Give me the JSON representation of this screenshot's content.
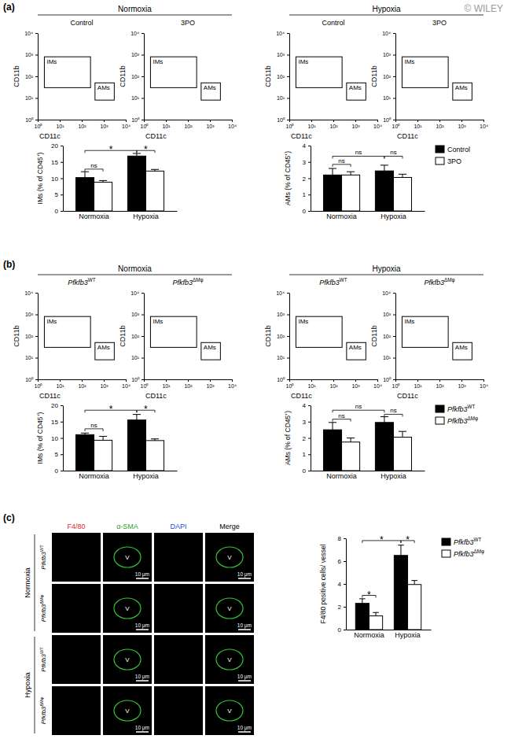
{
  "watermark": "© WILEY",
  "panel_labels": [
    "(a)",
    "(b)",
    "(c)"
  ],
  "flow_plots": [
    {
      "groups": [
        {
          "label": "Normoxia",
          "conditions": [
            {
              "text": "Control"
            },
            {
              "text": "3PO"
            }
          ]
        },
        {
          "label": "Hypoxia",
          "conditions": [
            {
              "text": "Control"
            },
            {
              "text": "3PO"
            }
          ]
        }
      ],
      "xlabel": "CD11c",
      "ylabel": "CD11b",
      "log": true,
      "xlim": [
        1,
        10000
      ],
      "ylim": [
        1,
        10000
      ],
      "xticks": [
        {
          "value": 1,
          "label": "10⁰"
        },
        {
          "value": 10,
          "label": "10¹"
        },
        {
          "value": 100,
          "label": "10²"
        },
        {
          "value": 1000,
          "label": "10³"
        },
        {
          "value": 10000,
          "label": "10⁴"
        }
      ],
      "yticks": [
        {
          "value": 1,
          "label": "10⁰"
        },
        {
          "value": 10,
          "label": "10¹"
        },
        {
          "value": 100,
          "label": "10²"
        },
        {
          "value": 1000,
          "label": "10³"
        },
        {
          "value": 10000,
          "label": "10⁴"
        }
      ],
      "gates": [
        {
          "label": "IMs",
          "x": [
            2,
            250
          ],
          "y": [
            30,
            800
          ]
        },
        {
          "label": "AMs",
          "x": [
            400,
            3000
          ],
          "y": [
            8,
            50
          ]
        }
      ]
    },
    {
      "groups": [
        {
          "label": "Normoxia",
          "conditions": [
            {
              "text": "Pfkfb3",
              "superscript": "WT"
            },
            {
              "text": "Pfkfb3",
              "superscript": "ΔMφ"
            }
          ]
        },
        {
          "label": "Hypoxia",
          "conditions": [
            {
              "text": "Pfkfb3",
              "superscript": "WT"
            },
            {
              "text": "Pfkfb3",
              "superscript": "ΔMφ"
            }
          ]
        }
      ],
      "xlabel": "CD11c",
      "ylabel": "CD11b",
      "log": true,
      "xlim": [
        1,
        10000
      ],
      "ylim": [
        1,
        10000
      ],
      "xticks": [
        {
          "value": 1,
          "label": "10⁰"
        },
        {
          "value": 10,
          "label": "10¹"
        },
        {
          "value": 100,
          "label": "10²"
        },
        {
          "value": 1000,
          "label": "10³"
        },
        {
          "value": 10000,
          "label": "10⁴"
        }
      ],
      "yticks": [
        {
          "value": 1,
          "label": "10⁰"
        },
        {
          "value": 10,
          "label": "10¹"
        },
        {
          "value": 100,
          "label": "10²"
        },
        {
          "value": 1000,
          "label": "10³"
        },
        {
          "value": 10000,
          "label": "10⁴"
        }
      ],
      "gates": [
        {
          "label": "IMs",
          "x": [
            2,
            250
          ],
          "y": [
            30,
            800
          ]
        },
        {
          "label": "AMs",
          "x": [
            400,
            3000
          ],
          "y": [
            8,
            50
          ]
        }
      ]
    }
  ],
  "micrographs": {
    "columns": [
      {
        "label": "F4/80",
        "color": "#e8262b",
        "vessel": false,
        "scale_bar": false
      },
      {
        "label": "α-SMA",
        "color": "#2ca02c",
        "vessel": true,
        "scale_bar": true
      },
      {
        "label": "DAPI",
        "color": "#2b3fd6",
        "vessel": false,
        "scale_bar": false
      },
      {
        "label": "Merge",
        "color": "#000000",
        "vessel": true,
        "scale_bar": true
      }
    ],
    "groups": [
      {
        "label": "Normoxia",
        "rows": [
          {
            "text": "Pfkfb3",
            "superscript": "WT"
          },
          {
            "text": "Pfkfb3",
            "superscript": "ΔMφ"
          }
        ]
      },
      {
        "label": "Hypoxia",
        "rows": [
          {
            "text": "Pfkfb3",
            "superscript": "WT"
          },
          {
            "text": "Pfkfb3",
            "superscript": "ΔMφ"
          }
        ]
      }
    ],
    "vessel_label": "V",
    "scale_label": "10 μm"
  },
  "chart_data": [
    {
      "type": "bar",
      "categories": [
        "Normoxia",
        "Hypoxia"
      ],
      "ylabel": "IMs (% of CD45⁺)",
      "ylim": [
        0,
        20
      ],
      "yticks": [
        0,
        5,
        10,
        15,
        20
      ],
      "series": [
        {
          "color": "#000000",
          "values": [
            10.2,
            16.8
          ],
          "errors": [
            1.8,
            0.8
          ]
        },
        {
          "color": "#ffffff",
          "values": [
            8.8,
            12.2
          ],
          "errors": [
            0.5,
            0.5
          ]
        }
      ],
      "annotations": [
        {
          "label": "ns",
          "from": [
            0,
            0
          ],
          "to": [
            0,
            1
          ],
          "y": 12.8
        },
        {
          "label": "*",
          "from": [
            0,
            0
          ],
          "to": [
            1,
            0
          ],
          "y": 18.5
        },
        {
          "label": "*",
          "from": [
            1,
            0
          ],
          "to": [
            1,
            1
          ],
          "y": 18.5
        }
      ]
    },
    {
      "type": "bar",
      "categories": [
        "Normoxia",
        "Hypoxia"
      ],
      "ylabel": "AMs (% of CD45⁺)",
      "ylim": [
        0,
        4
      ],
      "yticks": [
        0,
        1,
        2,
        3,
        4
      ],
      "legend": "right",
      "series": [
        {
          "name": "Control",
          "color": "#000000",
          "values": [
            2.2,
            2.45
          ],
          "errors": [
            0.4,
            0.35
          ]
        },
        {
          "name": "3PO",
          "color": "#ffffff",
          "values": [
            2.2,
            2.05
          ],
          "errors": [
            0.2,
            0.2
          ]
        }
      ],
      "annotations": [
        {
          "label": "ns",
          "from": [
            0,
            0
          ],
          "to": [
            0,
            1
          ],
          "y": 2.85
        },
        {
          "label": "ns",
          "from": [
            0,
            0
          ],
          "to": [
            1,
            0
          ],
          "y": 3.35
        },
        {
          "label": "ns",
          "from": [
            1,
            0
          ],
          "to": [
            1,
            1
          ],
          "y": 3.35
        }
      ]
    },
    {
      "type": "bar",
      "categories": [
        "Normoxia",
        "Hypoxia"
      ],
      "ylabel": "IMs (% of CD45⁺)",
      "ylim": [
        0,
        20
      ],
      "yticks": [
        0,
        5,
        10,
        15,
        20
      ],
      "series": [
        {
          "color": "#000000",
          "values": [
            11.0,
            15.5
          ],
          "errors": [
            0.5,
            1.7
          ]
        },
        {
          "color": "#ffffff",
          "values": [
            9.3,
            9.2
          ],
          "errors": [
            1.2,
            0.5
          ]
        }
      ],
      "annotations": [
        {
          "label": "ns",
          "from": [
            0,
            0
          ],
          "to": [
            0,
            1
          ],
          "y": 12.8
        },
        {
          "label": "*",
          "from": [
            0,
            0
          ],
          "to": [
            1,
            0
          ],
          "y": 18.5
        },
        {
          "label": "*",
          "from": [
            1,
            0
          ],
          "to": [
            1,
            1
          ],
          "y": 18.5
        }
      ]
    },
    {
      "type": "bar",
      "categories": [
        "Normoxia",
        "Hypoxia"
      ],
      "ylabel": "AMs (% of CD45⁺)",
      "ylim": [
        0,
        4
      ],
      "yticks": [
        0,
        1,
        2,
        3,
        4
      ],
      "legend": "right",
      "series": [
        {
          "name": "Pfkfb3",
          "superscript": "WT",
          "color": "#000000",
          "values": [
            2.5,
            2.95
          ],
          "errors": [
            0.45,
            0.35
          ]
        },
        {
          "name": "Pfkfb3",
          "superscript": "ΔMφ",
          "color": "#ffffff",
          "values": [
            1.75,
            2.05
          ],
          "errors": [
            0.25,
            0.35
          ]
        }
      ],
      "annotations": [
        {
          "label": "ns",
          "from": [
            0,
            0
          ],
          "to": [
            0,
            1
          ],
          "y": 3.15
        },
        {
          "label": "ns",
          "from": [
            0,
            0
          ],
          "to": [
            1,
            0
          ],
          "y": 3.7
        },
        {
          "label": "ns",
          "from": [
            1,
            0
          ],
          "to": [
            1,
            1
          ],
          "y": 3.45
        }
      ]
    },
    {
      "type": "bar",
      "categories": [
        "Normoxia",
        "Hypoxia"
      ],
      "ylabel": "F4/80 positive cells/ vessel",
      "ylim": [
        0,
        8
      ],
      "yticks": [
        0,
        2,
        4,
        6,
        8
      ],
      "legend": "right",
      "series": [
        {
          "name": "Pfkfb3",
          "superscript": "WT",
          "color": "#000000",
          "values": [
            2.3,
            6.5
          ],
          "errors": [
            0.4,
            0.9
          ]
        },
        {
          "name": "Pfkfb3",
          "superscript": "ΔMφ",
          "color": "#ffffff",
          "values": [
            1.2,
            3.95
          ],
          "errors": [
            0.3,
            0.35
          ]
        }
      ],
      "annotations": [
        {
          "label": "*",
          "from": [
            0,
            0
          ],
          "to": [
            0,
            1
          ],
          "y": 3.0
        },
        {
          "label": "*",
          "from": [
            0,
            0
          ],
          "to": [
            1,
            0
          ],
          "y": 7.8
        },
        {
          "label": "*",
          "from": [
            1,
            0
          ],
          "to": [
            1,
            1
          ],
          "y": 7.8
        }
      ]
    }
  ]
}
